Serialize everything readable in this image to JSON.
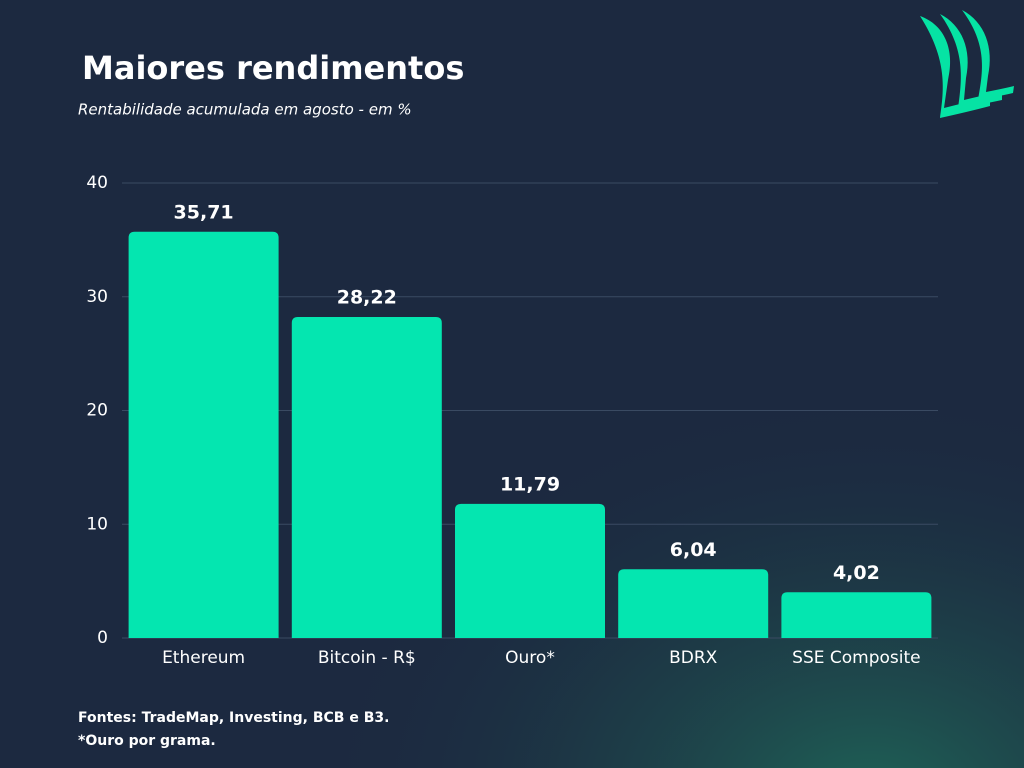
{
  "chart_data": {
    "type": "bar",
    "title": "Maiores rendimentos",
    "subtitle": "Rentabilidade acumulada em agosto - em %",
    "categories": [
      "Ethereum",
      "Bitcoin - R$",
      "Ouro*",
      "BDRX",
      "SSE Composite"
    ],
    "values": [
      35.71,
      28.22,
      11.79,
      6.04,
      4.02
    ],
    "value_labels": [
      "35,71",
      "28,22",
      "11,79",
      "6,04",
      "4,02"
    ],
    "color": "#04e6b0",
    "ylim": [
      0,
      40
    ],
    "yticks": [
      0,
      10,
      20,
      30,
      40
    ],
    "grid": true,
    "annotations": [
      "Fontes: TradeMap, Investing, BCB e B3.",
      "*Ouro por grama."
    ]
  }
}
